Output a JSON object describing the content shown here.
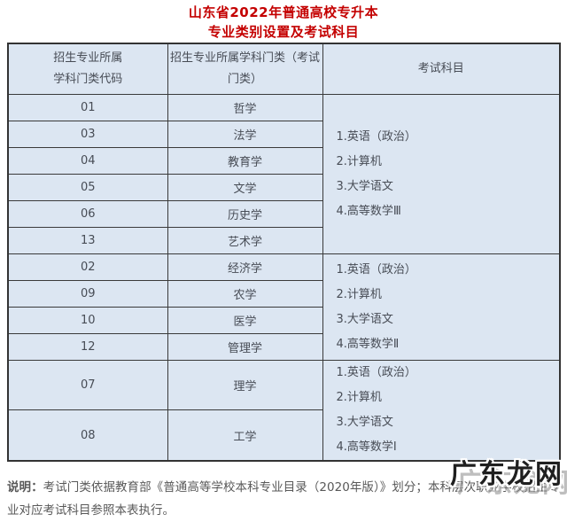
{
  "title": "山东省2022年普通高校专升本",
  "subtitle": "专业类别设置及考试科目",
  "colors": {
    "accent_red": "#c40000",
    "cell_bg": "#dce6f2",
    "border": "#3a3a3a",
    "table_text": "#474c55",
    "note_text": "#595959"
  },
  "table": {
    "headers": {
      "code": "招生专业所属\n学科门类代码",
      "category": "招生专业所属学科门类（考试\n门类）",
      "subjects": "考试科目"
    },
    "groups": [
      {
        "rows": [
          {
            "code": "01",
            "category": "哲学"
          },
          {
            "code": "03",
            "category": "法学"
          },
          {
            "code": "04",
            "category": "教育学"
          },
          {
            "code": "05",
            "category": "文学"
          },
          {
            "code": "06",
            "category": "历史学"
          },
          {
            "code": "13",
            "category": "艺术学"
          }
        ],
        "subjects": [
          "1.英语（政治）",
          "2.计算机",
          "3.大学语文",
          "4.高等数学Ⅲ"
        ]
      },
      {
        "rows": [
          {
            "code": "02",
            "category": "经济学"
          },
          {
            "code": "09",
            "category": "农学"
          },
          {
            "code": "10",
            "category": "医学"
          },
          {
            "code": "12",
            "category": "管理学"
          }
        ],
        "subjects": [
          "1.英语（政治）",
          "2.计算机",
          "3.大学语文",
          "4.高等数学Ⅱ"
        ]
      },
      {
        "rows": [
          {
            "code": "07",
            "category": "理学"
          },
          {
            "code": "08",
            "category": "工学"
          }
        ],
        "subjects": [
          "1.英语（政治）",
          "2.计算机",
          "3.大学语文",
          "4.高等数学Ⅰ"
        ]
      }
    ]
  },
  "note": {
    "label": "说明：",
    "text": "考试门类依据教育部《普通高等学校本科专业目录（2020年版）》划分；本科层次职业学校招生专业对应考试科目参照本表执行。"
  },
  "watermark": {
    "text": "广东龙网"
  }
}
